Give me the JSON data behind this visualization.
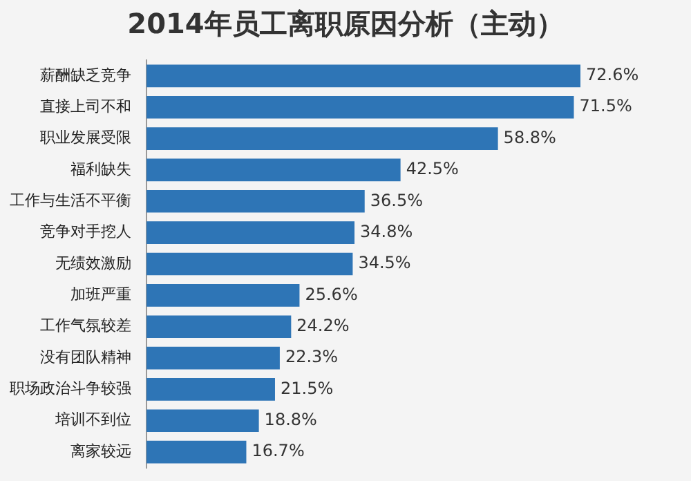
{
  "chart_data": {
    "type": "bar",
    "orientation": "horizontal",
    "title": "2014年员工离职原因分析（主动）",
    "categories": [
      "薪酬缺乏竞争",
      "直接上司不和",
      "职业发展受限",
      "福利缺失",
      "工作与生活不平衡",
      "竞争对手挖人",
      "无绩效激励",
      "加班严重",
      "工作气氛较差",
      "没有团队精神",
      "职场政治斗争较强",
      "培训不到位",
      "离家较远"
    ],
    "values": [
      72.6,
      71.5,
      58.8,
      42.5,
      36.5,
      34.8,
      34.5,
      25.6,
      24.2,
      22.3,
      21.5,
      18.8,
      16.7
    ],
    "value_labels": [
      "72.6%",
      "71.5%",
      "58.8%",
      "42.5%",
      "36.5%",
      "34.8%",
      "34.5%",
      "25.6%",
      "24.2%",
      "22.3%",
      "21.5%",
      "18.8%",
      "16.7%"
    ],
    "color": "#2e75b6",
    "legend": false,
    "tick_labels": "y"
  }
}
